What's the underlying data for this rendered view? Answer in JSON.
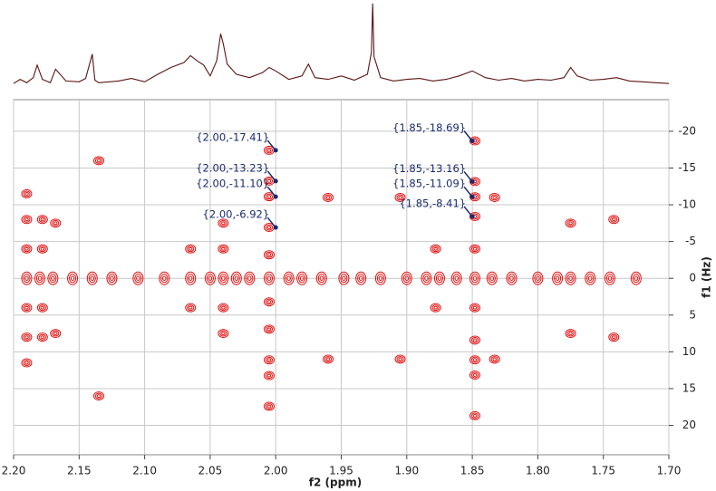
{
  "chart_data": [
    {
      "type": "line",
      "color": "#5a1414",
      "xlim": [
        2.2,
        1.7
      ],
      "ylim": [
        0,
        100
      ],
      "x": [
        2.2,
        2.195,
        2.19,
        2.185,
        2.182,
        2.178,
        2.172,
        2.168,
        2.16,
        2.15,
        2.145,
        2.14,
        2.138,
        2.135,
        2.12,
        2.11,
        2.1,
        2.09,
        2.08,
        2.07,
        2.065,
        2.06,
        2.055,
        2.05,
        2.045,
        2.042,
        2.04,
        2.037,
        2.03,
        2.02,
        2.01,
        2.005,
        2.0,
        1.99,
        1.98,
        1.975,
        1.97,
        1.96,
        1.95,
        1.94,
        1.93,
        1.927,
        1.926,
        1.925,
        1.92,
        1.91,
        1.9,
        1.89,
        1.88,
        1.87,
        1.86,
        1.85,
        1.84,
        1.83,
        1.82,
        1.81,
        1.8,
        1.79,
        1.78,
        1.775,
        1.77,
        1.76,
        1.75,
        1.74,
        1.73,
        1.72,
        1.71,
        1.7
      ],
      "values": [
        3,
        8,
        4,
        10,
        25,
        8,
        4,
        20,
        6,
        5,
        9,
        38,
        7,
        4,
        6,
        9,
        5,
        14,
        22,
        28,
        36,
        30,
        25,
        12,
        30,
        62,
        50,
        26,
        14,
        10,
        16,
        22,
        18,
        8,
        12,
        26,
        10,
        8,
        12,
        7,
        14,
        40,
        98,
        35,
        10,
        6,
        8,
        9,
        6,
        8,
        12,
        18,
        10,
        7,
        9,
        6,
        8,
        7,
        10,
        22,
        12,
        7,
        8,
        10,
        6,
        5,
        4,
        3
      ]
    },
    {
      "type": "contour",
      "color": "#e01010",
      "xlabel": "f2 (ppm)",
      "ylabel": "f1 (Hz)",
      "xlim": [
        2.2,
        1.7
      ],
      "ylim": [
        -24.3,
        24.0
      ],
      "y_inverted": true,
      "grid": true,
      "xticks": [
        {
          "value": 2.2,
          "label": "2.20"
        },
        {
          "value": 2.15,
          "label": "2.15"
        },
        {
          "value": 2.1,
          "label": "2.10"
        },
        {
          "value": 2.05,
          "label": "2.05"
        },
        {
          "value": 2.0,
          "label": "2.00"
        },
        {
          "value": 1.95,
          "label": "1.95"
        },
        {
          "value": 1.9,
          "label": "1.90"
        },
        {
          "value": 1.85,
          "label": "1.85"
        },
        {
          "value": 1.8,
          "label": "1.80"
        },
        {
          "value": 1.75,
          "label": "1.75"
        },
        {
          "value": 1.7,
          "label": "1.70"
        }
      ],
      "yticks": [
        -20,
        -15,
        -10,
        -5,
        0,
        5,
        10,
        15,
        20
      ],
      "peaks": {
        "x": [
          2.19,
          2.18,
          2.17,
          2.155,
          2.14,
          2.125,
          2.105,
          2.085,
          2.065,
          2.05,
          2.04,
          2.03,
          2.02,
          2.005,
          1.99,
          1.98,
          1.965,
          1.948,
          1.935,
          1.92,
          1.9,
          1.885,
          1.875,
          1.862,
          1.848,
          1.835,
          1.82,
          1.8,
          1.785,
          1.775,
          1.76,
          1.745,
          1.725,
          2.005,
          2.005,
          2.005,
          2.005,
          2.005,
          2.005,
          2.005,
          2.005,
          2.005,
          2.005,
          1.848,
          1.848,
          1.848,
          1.848,
          1.848,
          1.848,
          1.848,
          1.848,
          1.848,
          1.848,
          2.19,
          2.19,
          2.19,
          2.19,
          2.19,
          2.19,
          2.178,
          2.178,
          2.178,
          2.178,
          2.168,
          2.168,
          2.065,
          2.065,
          2.04,
          2.04,
          2.04,
          2.04,
          1.775,
          1.775,
          1.742,
          1.742,
          1.878,
          1.878,
          1.833,
          1.833,
          2.135,
          2.135,
          1.96,
          1.96,
          1.905,
          1.905
        ],
        "y": [
          0,
          0,
          0,
          0,
          0,
          0,
          0,
          0,
          0,
          0,
          0,
          0,
          0,
          0,
          0,
          0,
          0,
          0,
          0,
          0,
          0,
          0,
          0,
          0,
          0,
          0,
          0,
          0,
          0,
          0,
          0,
          0,
          0,
          -17.41,
          -13.23,
          -11.1,
          -6.92,
          -3.2,
          3.2,
          6.92,
          11.1,
          13.23,
          17.41,
          -18.69,
          -13.16,
          -11.09,
          -8.41,
          -4,
          4,
          8.41,
          11.09,
          13.16,
          18.69,
          -11.5,
          -8,
          -4,
          4,
          8,
          11.5,
          -4,
          -8,
          4,
          8,
          -7.5,
          7.5,
          -4,
          4,
          -4,
          -7.5,
          4,
          7.5,
          -7.5,
          7.5,
          -8,
          8,
          -4,
          4,
          -11,
          11,
          -16,
          16,
          -11,
          11,
          -11,
          11
        ]
      },
      "annotations": [
        {
          "x": 2.0,
          "y": -17.41,
          "label": "{2.00,-17.41}"
        },
        {
          "x": 2.0,
          "y": -13.23,
          "label": "{2.00,-13.23}"
        },
        {
          "x": 2.0,
          "y": -11.1,
          "label": "{2.00,-11.10}"
        },
        {
          "x": 2.0,
          "y": -6.92,
          "label": "{2.00,-6.92}"
        },
        {
          "x": 1.85,
          "y": -18.69,
          "label": "{1.85,-18.69}"
        },
        {
          "x": 1.85,
          "y": -13.16,
          "label": "{1.85,-13.16}"
        },
        {
          "x": 1.85,
          "y": -11.09,
          "label": "{1.85,-11.09}"
        },
        {
          "x": 1.85,
          "y": -8.41,
          "label": "{1.85,-8.41}"
        }
      ]
    }
  ]
}
